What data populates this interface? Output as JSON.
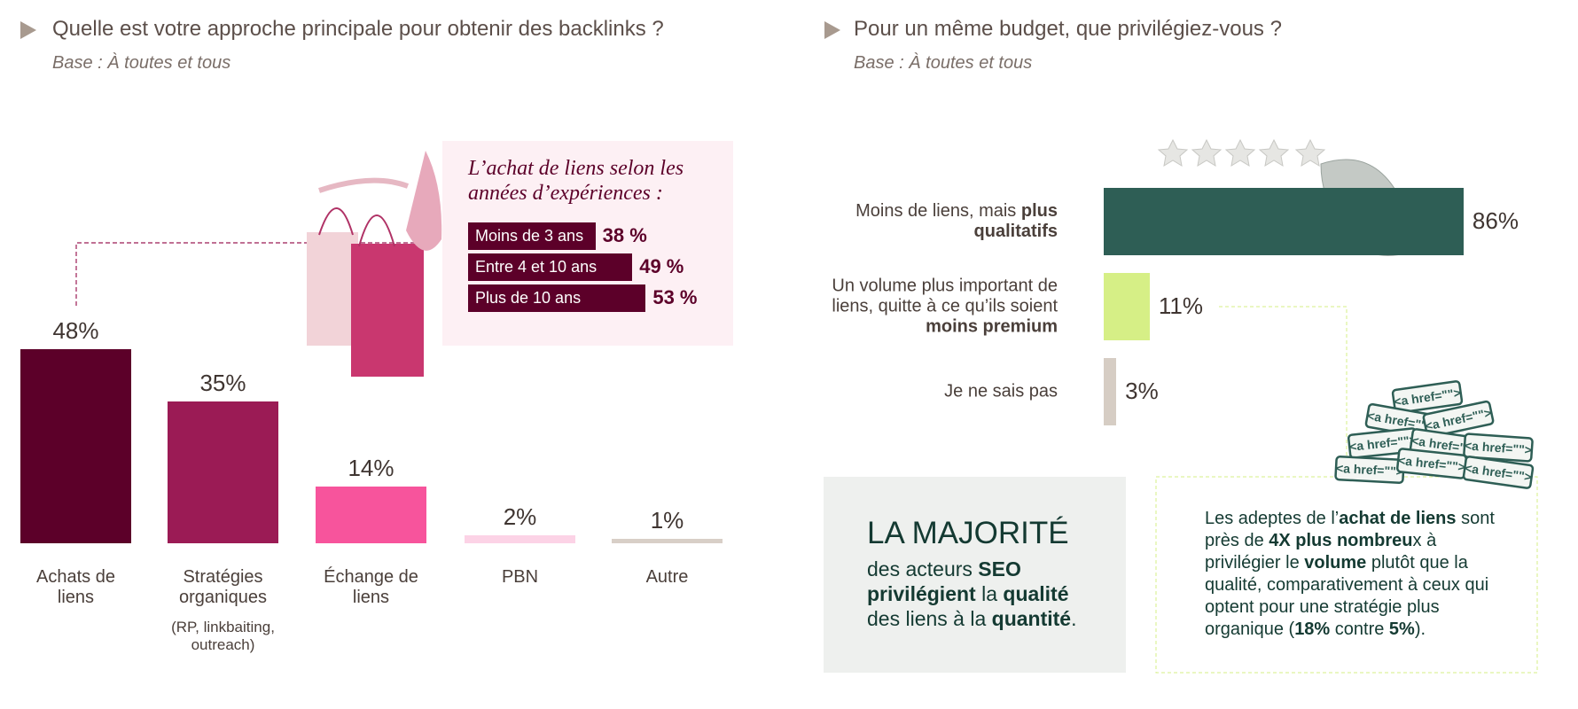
{
  "chart_data": [
    {
      "type": "bar",
      "title": "Quelle est votre approche principale pour obtenir des backlinks ?",
      "subtitle": "Base : À toutes et tous",
      "categories": [
        "Achats de liens",
        "Stratégies organiques",
        "Échange de liens",
        "PBN",
        "Autre"
      ],
      "category_notes": [
        null,
        "(RP, linkbaiting, outreach)",
        null,
        null,
        null
      ],
      "values": [
        48,
        35,
        14,
        2,
        1
      ],
      "value_labels": [
        "48%",
        "35%",
        "14%",
        "2%",
        "1%"
      ],
      "colors": [
        "#5c0029",
        "#9b1b55",
        "#f7549c",
        "#fcd3e6",
        "#d8cfc7"
      ],
      "inset": {
        "type": "hbar",
        "title": "L’achat de liens selon les années d’expériences :",
        "categories": [
          "Moins de 3 ans",
          "Entre 4 et 10 ans",
          "Plus de 10 ans"
        ],
        "values": [
          38,
          49,
          53
        ],
        "value_labels": [
          "38 %",
          "49 %",
          "53 %"
        ],
        "color": "#5c0029"
      }
    },
    {
      "type": "hbar",
      "title": "Pour un même budget, que privilégiez-vous ?",
      "subtitle": "Base : À toutes et tous",
      "categories": [
        [
          {
            "text": "Moins de liens, mais ",
            "bold": false
          },
          {
            "text": "plus qualitatifs",
            "bold": true
          }
        ],
        [
          {
            "text": "Un volume plus important de liens, quitte à ce qu’ils soient ",
            "bold": false
          },
          {
            "text": "moins premium",
            "bold": true
          }
        ],
        [
          {
            "text": "Je ne sais pas",
            "bold": false
          }
        ]
      ],
      "values": [
        86,
        11,
        3
      ],
      "value_labels": [
        "86%",
        "11%",
        "3%"
      ],
      "colors": [
        "#2e5e55",
        "#d6ef86",
        "#d6cdc4"
      ]
    }
  ],
  "callouts": [
    {
      "title": "LA MAJORITÉ",
      "body": [
        {
          "text": "des acteurs ",
          "bold": false
        },
        {
          "text": "SEO",
          "bold": true
        },
        {
          "text": " ",
          "bold": false
        },
        {
          "text": "privilégient",
          "bold": true
        },
        {
          "text": " la ",
          "bold": false
        },
        {
          "text": "qualité",
          "bold": true
        },
        {
          "text": " des liens à la ",
          "bold": false
        },
        {
          "text": "quantité",
          "bold": true
        },
        {
          "text": ".",
          "bold": false
        }
      ]
    },
    {
      "body": [
        {
          "text": "Les adeptes de l’",
          "bold": false
        },
        {
          "text": "achat de liens",
          "bold": true
        },
        {
          "text": " sont près de ",
          "bold": false
        },
        {
          "text": "4X plus nombreu",
          "bold": true
        },
        {
          "text": "x à privilégier le ",
          "bold": false
        },
        {
          "text": "volume",
          "bold": true
        },
        {
          "text": " plutôt que la qualité, comparativement à ceux qui optent pour une stratégie plus organique (",
          "bold": false
        },
        {
          "text": "18%",
          "bold": true
        },
        {
          "text": " contre ",
          "bold": false
        },
        {
          "text": "5%",
          "bold": true
        },
        {
          "text": ").",
          "bold": false
        }
      ]
    }
  ],
  "illustration_text": "<a href=\"\">"
}
